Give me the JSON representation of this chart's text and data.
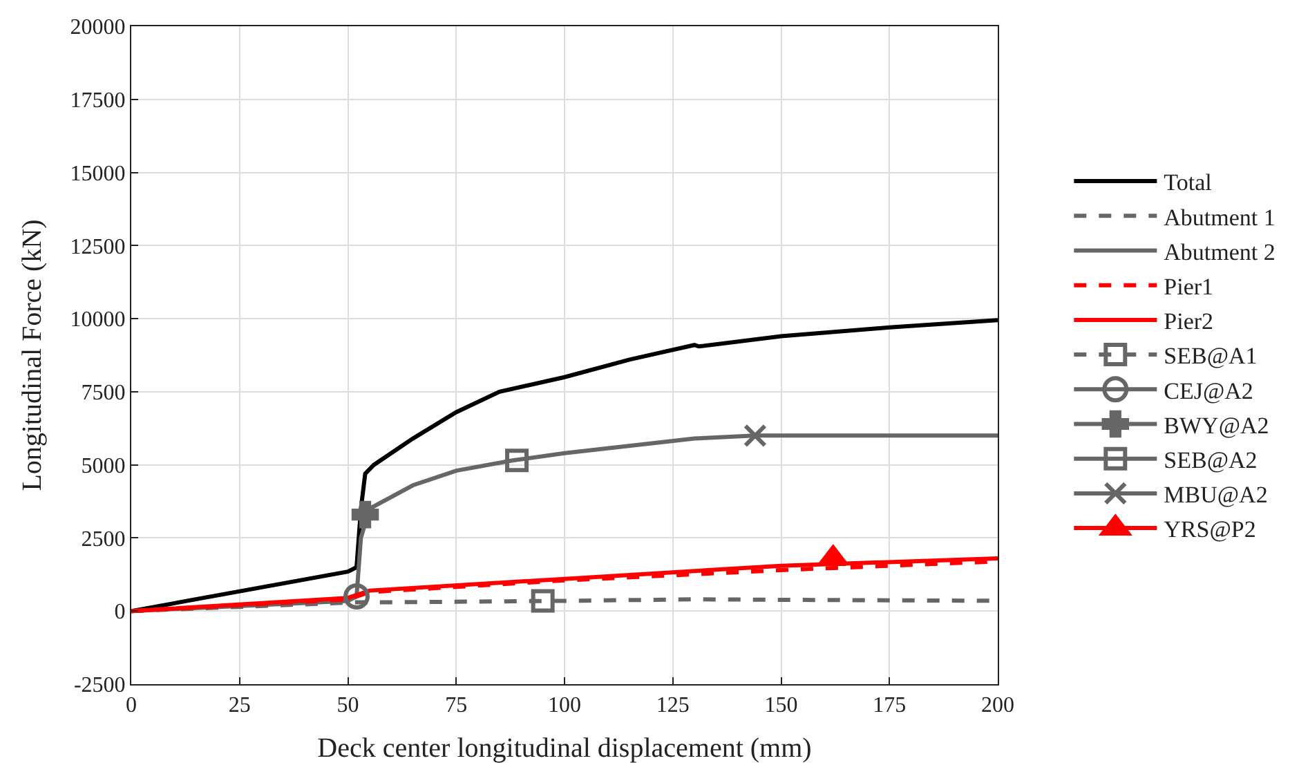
{
  "chart_data": {
    "type": "line",
    "xlabel": "Deck center longitudinal displacement (mm)",
    "ylabel": "Longitudinal Force (kN)",
    "xlim": [
      0,
      200
    ],
    "xticks": [
      0,
      25,
      50,
      75,
      100,
      125,
      150,
      175,
      200
    ],
    "ylim": [
      -2500,
      20000
    ],
    "yticks": [
      -2500,
      0,
      2500,
      5000,
      7500,
      10000,
      12500,
      15000,
      17500,
      20000
    ],
    "grid": true,
    "legend": "right",
    "marker": "none",
    "line_style": "solid",
    "series": [
      {
        "name": "Total",
        "color": "#000000",
        "x": [
          0,
          50,
          52,
          53,
          54,
          56,
          65,
          75,
          85,
          100,
          115,
          130,
          131,
          150,
          175,
          200
        ],
        "values": [
          0,
          1350,
          1500,
          3500,
          4700,
          5000,
          5900,
          6800,
          7500,
          8000,
          8600,
          9100,
          9050,
          9400,
          9700,
          9950
        ]
      },
      {
        "name": "Abutment 1",
        "color": "#666666",
        "line_style": "dashed",
        "x": [
          0,
          52,
          60,
          100,
          130,
          200
        ],
        "values": [
          0,
          300,
          300,
          350,
          400,
          350
        ]
      },
      {
        "name": "Abutment 2",
        "color": "#666666",
        "x": [
          0,
          50,
          52,
          53,
          55,
          65,
          75,
          88,
          100,
          130,
          144,
          200
        ],
        "values": [
          0,
          350,
          500,
          2500,
          3500,
          4300,
          4800,
          5150,
          5400,
          5900,
          6000,
          6000
        ]
      },
      {
        "name": "Pier1",
        "color": "#ff0000",
        "line_style": "dashed",
        "x": [
          0,
          50,
          55,
          100,
          150,
          200
        ],
        "values": [
          0,
          400,
          650,
          1050,
          1400,
          1700
        ]
      },
      {
        "name": "Pier2",
        "color": "#ff0000",
        "x": [
          0,
          50,
          55,
          100,
          150,
          200
        ],
        "values": [
          0,
          450,
          700,
          1100,
          1550,
          1800
        ]
      },
      {
        "name": "SEB@A1",
        "color": "#666666",
        "line_style": "dashed",
        "marker": "square",
        "x": [
          95
        ],
        "values": [
          350
        ]
      },
      {
        "name": "CEJ@A2",
        "color": "#666666",
        "marker": "circle",
        "x": [
          52
        ],
        "values": [
          500
        ]
      },
      {
        "name": "BWY@A2",
        "color": "#666666",
        "marker": "cross",
        "x": [
          54
        ],
        "values": [
          3300
        ]
      },
      {
        "name": "SEB@A2",
        "color": "#666666",
        "marker": "square",
        "x": [
          89
        ],
        "values": [
          5150
        ]
      },
      {
        "name": "MBU@A2",
        "color": "#666666",
        "marker": "x",
        "x": [
          144
        ],
        "values": [
          6000
        ]
      },
      {
        "name": "YRS@P2",
        "color": "#ff0000",
        "marker": "triangle",
        "x": [
          162
        ],
        "values": [
          1800
        ]
      }
    ]
  }
}
